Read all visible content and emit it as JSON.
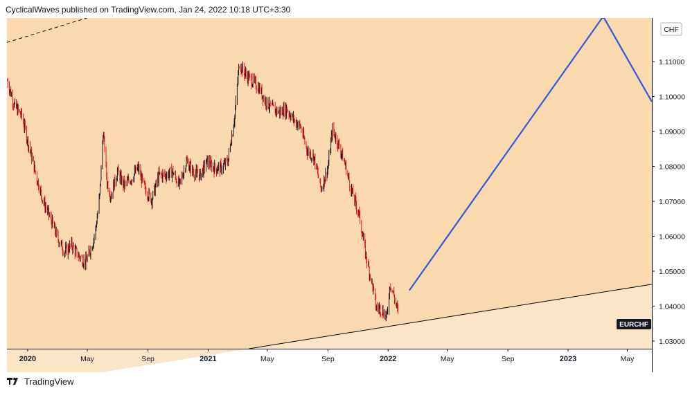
{
  "header": {
    "publish_line": "CyclicalWaves published on TradingView.com, Jan 24, 2022 10:18 UTC+3:30"
  },
  "footer": {
    "brand": "TradingView",
    "logo_icon": "tradingview-logo-icon"
  },
  "colors": {
    "panel_background": "#fbd9ae",
    "lower_zone": "#fce4c7",
    "up_candle": "#131722",
    "down_candle": "#e8161b",
    "projection_line": "#2e57e0",
    "trendline": "#000000",
    "price_label_bg": "#131722"
  },
  "chart_data": {
    "type": "line",
    "symbol": "EURCHF",
    "currency": "CHF",
    "x_tick_labels": [
      "2020",
      "May",
      "Sep",
      "2021",
      "May",
      "Sep",
      "2022",
      "May",
      "Sep",
      "2023",
      "May"
    ],
    "x_tick_dates": [
      "2020-01-01",
      "2020-05-01",
      "2020-09-01",
      "2021-01-01",
      "2021-05-01",
      "2021-09-01",
      "2022-01-01",
      "2022-05-01",
      "2022-09-01",
      "2023-01-01",
      "2023-05-01"
    ],
    "xlim": [
      "2019-11-20",
      "2023-06-20"
    ],
    "y_tick_labels": [
      "1.03000",
      "1.04000",
      "1.05000",
      "1.06000",
      "1.07000",
      "1.08000",
      "1.09000",
      "1.10000",
      "1.11000"
    ],
    "y_ticks": [
      1.03,
      1.04,
      1.05,
      1.06,
      1.07,
      1.08,
      1.09,
      1.1,
      1.11
    ],
    "ylim": [
      1.0278,
      1.1225
    ],
    "price_label": "EURCHF",
    "series": [
      {
        "name": "EURCHF",
        "x": [
          "2019-11-21",
          "2019-12-05",
          "2019-12-20",
          "2020-01-06",
          "2020-01-20",
          "2020-02-03",
          "2020-02-18",
          "2020-03-02",
          "2020-03-16",
          "2020-03-30",
          "2020-04-13",
          "2020-04-27",
          "2020-05-11",
          "2020-05-18",
          "2020-05-26",
          "2020-06-02",
          "2020-06-05",
          "2020-06-10",
          "2020-06-18",
          "2020-07-01",
          "2020-07-15",
          "2020-07-29",
          "2020-08-12",
          "2020-08-26",
          "2020-09-09",
          "2020-09-23",
          "2020-10-07",
          "2020-10-21",
          "2020-11-04",
          "2020-11-18",
          "2020-12-02",
          "2020-12-16",
          "2020-12-30",
          "2021-01-13",
          "2021-01-27",
          "2021-02-10",
          "2021-02-24",
          "2021-03-05",
          "2021-03-17",
          "2021-03-31",
          "2021-04-14",
          "2021-04-28",
          "2021-05-12",
          "2021-05-26",
          "2021-06-09",
          "2021-06-23",
          "2021-07-07",
          "2021-07-21",
          "2021-08-04",
          "2021-08-18",
          "2021-09-01",
          "2021-09-10",
          "2021-09-22",
          "2021-10-06",
          "2021-10-20",
          "2021-11-03",
          "2021-11-17",
          "2021-12-01",
          "2021-12-08",
          "2021-12-15",
          "2021-12-22",
          "2021-12-29",
          "2022-01-05",
          "2022-01-12",
          "2022-01-19",
          "2022-01-24"
        ],
        "values": [
          1.1045,
          1.0975,
          1.0945,
          1.0845,
          1.0765,
          1.0695,
          1.0645,
          1.0595,
          1.0555,
          1.0575,
          1.0545,
          1.0525,
          1.0575,
          1.062,
          1.0715,
          1.0895,
          1.0855,
          1.0755,
          1.0715,
          1.0785,
          1.0745,
          1.0765,
          1.0795,
          1.0735,
          1.0705,
          1.0775,
          1.0775,
          1.0785,
          1.0745,
          1.0815,
          1.0785,
          1.0775,
          1.0815,
          1.0795,
          1.0795,
          1.0815,
          1.0945,
          1.1095,
          1.1065,
          1.1045,
          1.1025,
          1.0985,
          1.0965,
          1.0955,
          1.0965,
          1.0935,
          1.0915,
          1.0845,
          1.0825,
          1.0735,
          1.0795,
          1.0905,
          1.0865,
          1.0805,
          1.0725,
          1.0665,
          1.0545,
          1.0455,
          1.0395,
          1.0395,
          1.0385,
          1.0365,
          1.0465,
          1.0435,
          1.0395,
          1.0355
        ]
      }
    ],
    "trendline_points": {
      "x": [
        "2021-03-25",
        "2023-07-01"
      ],
      "y": [
        1.0278,
        1.0465
      ]
    },
    "upper_dashed_line_points": {
      "x": [
        "2019-11-20",
        "2020-04-30"
      ],
      "y": [
        1.1155,
        1.1225
      ]
    },
    "projection_points": {
      "x": [
        "2022-02-13",
        "2023-03-11",
        "2023-03-15",
        "2023-06-20"
      ],
      "y": [
        1.0445,
        1.1225,
        1.1225,
        1.0985
      ]
    }
  }
}
